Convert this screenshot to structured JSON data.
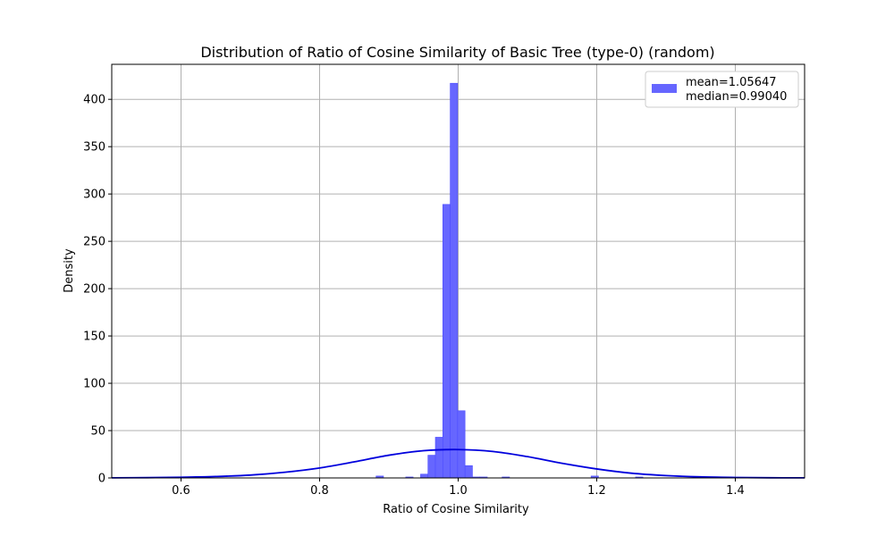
{
  "chart_data": {
    "type": "bar",
    "title": "Distribution of Ratio of Cosine Similarity of Basic Tree (type-0) (random)",
    "xlabel": "Ratio of Cosine Similarity",
    "ylabel": "Density",
    "xlim": [
      0.5,
      1.5
    ],
    "ylim": [
      0,
      437
    ],
    "xticks": [
      0.6,
      0.8,
      1.0,
      1.2,
      1.4
    ],
    "xtick_labels": [
      "0.6",
      "0.8",
      "1.0",
      "1.2",
      "1.4"
    ],
    "yticks": [
      0,
      50,
      100,
      150,
      200,
      250,
      300,
      350,
      400
    ],
    "ytick_labels": [
      "0",
      "50",
      "100",
      "150",
      "200",
      "250",
      "300",
      "350",
      "400"
    ],
    "grid": true,
    "legend_position": "top-right",
    "bar_color": "#6666ff",
    "bar_edge_color": "#4d4dff",
    "curve_color": "#0000dd",
    "bin_width": 0.0107,
    "histogram": {
      "bin_starts": [
        0.8815,
        0.9243,
        0.9457,
        0.9564,
        0.9671,
        0.9778,
        0.9885,
        0.9992,
        1.0099,
        1.0206,
        1.0313,
        1.0634,
        1.1918,
        1.256
      ],
      "values": [
        2,
        1,
        4,
        24,
        43,
        289,
        417,
        71,
        13,
        1,
        1,
        1,
        2,
        1
      ]
    },
    "kde": {
      "x": [
        0.5,
        0.55,
        0.6,
        0.65,
        0.7,
        0.75,
        0.8,
        0.85,
        0.9,
        0.95,
        1.0,
        1.05,
        1.1,
        1.15,
        1.2,
        1.25,
        1.3,
        1.35,
        1.4,
        1.45,
        1.5
      ],
      "y": [
        0.1,
        0.3,
        0.7,
        1.5,
        3.0,
        6.0,
        10.5,
        17.0,
        24.0,
        28.8,
        30.0,
        28.0,
        22.5,
        15.5,
        9.5,
        5.0,
        2.5,
        1.1,
        0.5,
        0.2,
        0.1
      ]
    },
    "legend": {
      "line1": "mean=1.05647",
      "line2": "median=0.99040"
    }
  }
}
